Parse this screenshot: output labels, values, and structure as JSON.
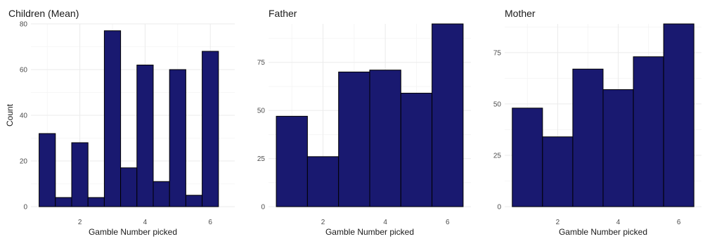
{
  "colors": {
    "bar_fill": "#191970",
    "bar_stroke": "#000000"
  },
  "chart_data": [
    {
      "type": "bar",
      "title": "Children (Mean)",
      "xlabel": "Gamble Number picked",
      "ylabel": "Count",
      "xlim": [
        0.5,
        6.75
      ],
      "ylim": [
        0,
        80
      ],
      "xticks": [
        2,
        4,
        6
      ],
      "yticks": [
        0,
        20,
        40,
        60,
        80
      ],
      "bins": [
        {
          "x0": 0.75,
          "x1": 1.25,
          "value": 32
        },
        {
          "x0": 1.25,
          "x1": 1.75,
          "value": 4
        },
        {
          "x0": 1.75,
          "x1": 2.25,
          "value": 28
        },
        {
          "x0": 2.25,
          "x1": 2.75,
          "value": 4
        },
        {
          "x0": 2.75,
          "x1": 3.25,
          "value": 77
        },
        {
          "x0": 3.25,
          "x1": 3.75,
          "value": 17
        },
        {
          "x0": 3.75,
          "x1": 4.25,
          "value": 62
        },
        {
          "x0": 4.25,
          "x1": 4.75,
          "value": 11
        },
        {
          "x0": 4.75,
          "x1": 5.25,
          "value": 60
        },
        {
          "x0": 5.25,
          "x1": 5.75,
          "value": 5
        },
        {
          "x0": 5.75,
          "x1": 6.25,
          "value": 68
        }
      ]
    },
    {
      "type": "bar",
      "title": "Father",
      "xlabel": "Gamble Number picked",
      "ylabel": "",
      "xlim": [
        0.25,
        6.75
      ],
      "ylim": [
        0,
        95
      ],
      "xticks": [
        2,
        4,
        6
      ],
      "yticks": [
        0,
        25,
        50,
        75
      ],
      "bins": [
        {
          "x0": 0.5,
          "x1": 1.5,
          "value": 47
        },
        {
          "x0": 1.5,
          "x1": 2.5,
          "value": 26
        },
        {
          "x0": 2.5,
          "x1": 3.5,
          "value": 70
        },
        {
          "x0": 3.5,
          "x1": 4.5,
          "value": 71
        },
        {
          "x0": 4.5,
          "x1": 5.5,
          "value": 59
        },
        {
          "x0": 5.5,
          "x1": 6.5,
          "value": 95
        }
      ]
    },
    {
      "type": "bar",
      "title": "Mother",
      "xlabel": "Gamble Number picked",
      "ylabel": "",
      "xlim": [
        0.25,
        6.75
      ],
      "ylim": [
        0,
        89
      ],
      "xticks": [
        2,
        4,
        6
      ],
      "yticks": [
        0,
        25,
        50,
        75
      ],
      "bins": [
        {
          "x0": 0.5,
          "x1": 1.5,
          "value": 48
        },
        {
          "x0": 1.5,
          "x1": 2.5,
          "value": 34
        },
        {
          "x0": 2.5,
          "x1": 3.5,
          "value": 67
        },
        {
          "x0": 3.5,
          "x1": 4.5,
          "value": 57
        },
        {
          "x0": 4.5,
          "x1": 5.5,
          "value": 73
        },
        {
          "x0": 5.5,
          "x1": 6.5,
          "value": 89
        }
      ]
    }
  ]
}
